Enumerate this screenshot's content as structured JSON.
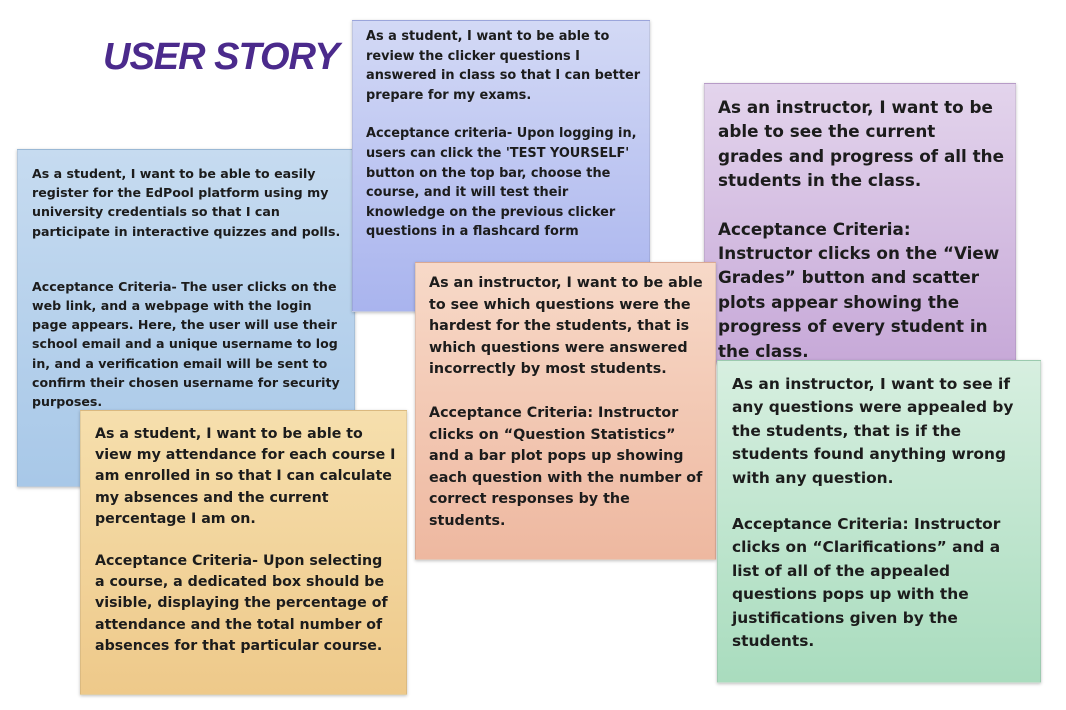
{
  "title": "USER STORY",
  "notes": [
    {
      "story": "As a student, I want to be able to easily register for the EdPool platform using my university credentials so that I can participate in interactive quizzes and polls.",
      "criteria": "Acceptance Criteria- The user clicks on the web link, and a webpage with the login page appears. Here, the user will use their school email and a unique username to log in, and a verification email will be sent to confirm their chosen username for security purposes.",
      "color": "#b8d2ec"
    },
    {
      "story": "As a student, I want to be able to review the clicker questions I answered in class so that I can better prepare for my exams.",
      "criteria": "Acceptance criteria- Upon logging in, users can click the 'TEST YOURSELF' button on the top bar, choose the course, and it will test their knowledge on the previous clicker questions in a flashcard form",
      "color": "#bec6f1"
    },
    {
      "story": "As an instructor, I want to be able to see the current grades and progress of all the students in the class.",
      "criteria": "Acceptance Criteria: Instructor clicks on the “View Grades” button and scatter plots appear showing the progress of every student in the class.",
      "color": "#d5bee2"
    },
    {
      "story": "As an instructor, I want to be able to see which questions were the hardest for the students, that is which questions were answered incorrectly by most students.",
      "criteria": "Acceptance Criteria: Instructor clicks on “Question Statistics” and a bar plot pops up showing each question with the number of correct responses by the students.",
      "color": "#f2c8b4"
    },
    {
      "story": "As a student, I want to be able to view my attendance for each course I am enrolled in so that I can calculate my absences and the current percentage I am on.",
      "criteria": "Acceptance Criteria- Upon selecting a course, a dedicated box should be visible, displaying the percentage of attendance and the total number of absences for that particular course.",
      "color": "#f2d49b"
    },
    {
      "story": "As an instructor, I want to see if any questions were appealed by the students, that is if the students found anything wrong with any question.",
      "criteria": "Acceptance Criteria: Instructor clicks on “Clarifications” and a list of all of the appealed questions pops up with the justifications given by the students.",
      "color": "#c0e6cf"
    }
  ]
}
